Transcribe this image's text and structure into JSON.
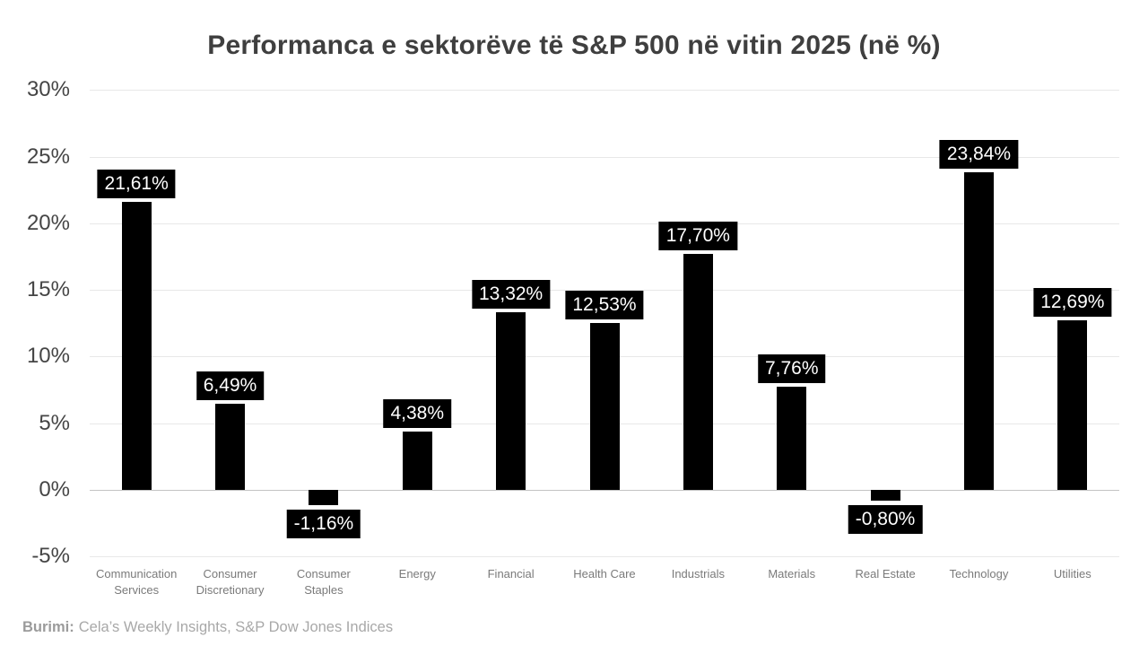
{
  "title": "Performanca e sektorëve të S&P 500 në vitin 2025 (në %)",
  "source": {
    "label": "Burimi:",
    "text": "Cela’s Weekly Insights, S&P Dow Jones Indices"
  },
  "chart_data": {
    "type": "bar",
    "title": "Performanca e sektorëve të S&P 500 në vitin 2025 (në %)",
    "categories": [
      "Communication Services",
      "Consumer Discretionary",
      "Consumer Staples",
      "Energy",
      "Financial",
      "Health Care",
      "Industrials",
      "Materials",
      "Real Estate",
      "Technology",
      "Utilities"
    ],
    "values": [
      21.61,
      6.49,
      -1.16,
      4.38,
      13.32,
      12.53,
      17.7,
      7.76,
      -0.8,
      23.84,
      12.69
    ],
    "value_labels": [
      "21,61%",
      "6,49%",
      "-1,16%",
      "4,38%",
      "13,32%",
      "12,53%",
      "17,70%",
      "7,76%",
      "-0,80%",
      "23,84%",
      "12,69%"
    ],
    "xlabel": "",
    "ylabel": "",
    "ylim": [
      -5,
      30
    ],
    "ytick_values": [
      30,
      25,
      20,
      15,
      10,
      5,
      0,
      -5
    ],
    "ytick_labels": [
      "30%",
      "25%",
      "20%",
      "15%",
      "10%",
      "5%",
      "0%",
      "-5%"
    ],
    "grid": true,
    "legend": "none",
    "bar_color": "#000000",
    "data_label_bg": "#000000",
    "data_label_color": "#ffffff",
    "gridline_color": "#e8e8e8",
    "zero_line_color": "#c4c4c4"
  }
}
